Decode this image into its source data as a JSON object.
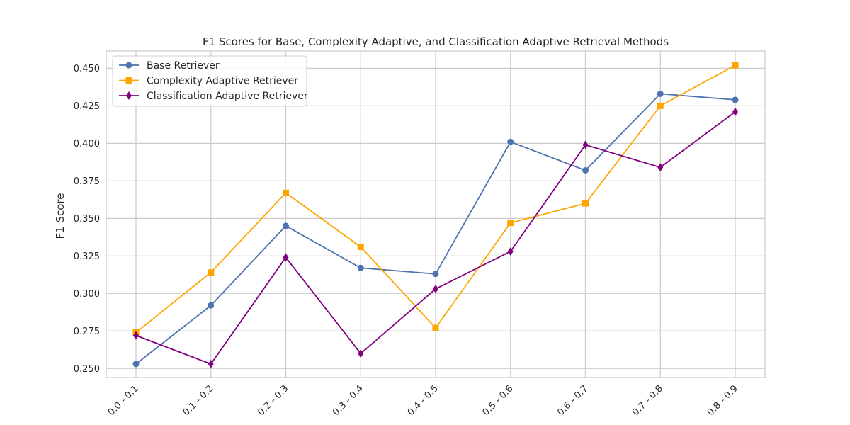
{
  "chart_data": {
    "type": "line",
    "title": "F1 Scores for Base, Complexity Adaptive, and Classification Adaptive Retrieval Methods",
    "xlabel": "",
    "ylabel": "F1 Score",
    "categories": [
      "0.0 - 0.1",
      "0.1 - 0.2",
      "0.2 - 0.3",
      "0.3 - 0.4",
      "0.4 - 0.5",
      "0.5 - 0.6",
      "0.6 - 0.7",
      "0.7 - 0.8",
      "0.8 - 0.9"
    ],
    "ylim": [
      0.244,
      0.4615
    ],
    "yticks": [
      "0.250",
      "0.275",
      "0.300",
      "0.325",
      "0.350",
      "0.375",
      "0.400",
      "0.425",
      "0.450"
    ],
    "grid": true,
    "legend_position": "top-left",
    "series": [
      {
        "name": "Base Retriever",
        "color": "#4c72b0",
        "marker": "circle",
        "values": [
          0.253,
          0.292,
          0.345,
          0.317,
          0.313,
          0.401,
          0.382,
          0.433,
          0.429
        ]
      },
      {
        "name": "Complexity Adaptive Retriever",
        "color": "#ffa500",
        "marker": "square",
        "values": [
          0.274,
          0.314,
          0.367,
          0.331,
          0.277,
          0.347,
          0.36,
          0.425,
          0.452
        ]
      },
      {
        "name": "Classification Adaptive Retriever",
        "color": "#800080",
        "marker": "diamond",
        "values": [
          0.272,
          0.253,
          0.324,
          0.26,
          0.303,
          0.328,
          0.399,
          0.384,
          0.421
        ]
      }
    ]
  }
}
